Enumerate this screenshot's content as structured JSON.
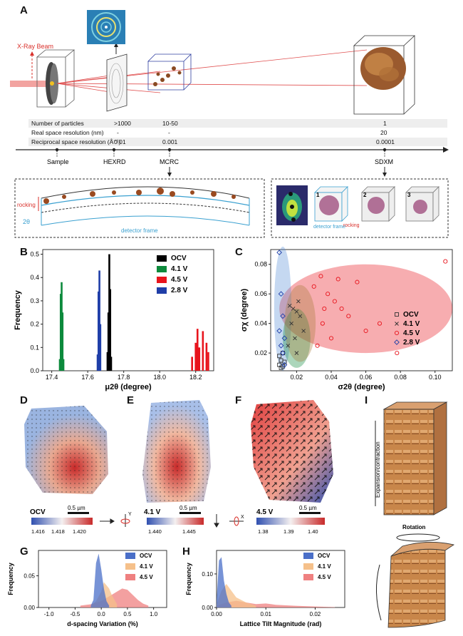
{
  "panels": {
    "A": "A",
    "B": "B",
    "C": "C",
    "D": "D",
    "E": "E",
    "F": "F",
    "G": "G",
    "H": "H",
    "I": "I"
  },
  "panelA": {
    "beam_label": "X-Ray Beam",
    "table": [
      {
        "label": "Number of particles",
        "hexrd": ">1000",
        "mcrc": "10-50",
        "sdxm": "1"
      },
      {
        "label": "Real space resolution (nm)",
        "hexrd": "-",
        "mcrc": "-",
        "sdxm": "20"
      },
      {
        "label": "Reciprocal space resolution (Å⁻¹)",
        "hexrd": "0.01",
        "mcrc": "0.001",
        "sdxm": "0.0001"
      }
    ],
    "timeline": [
      "Sample",
      "HEXRD",
      "MCRC",
      "SDXM"
    ],
    "mcrc_box": {
      "rocking": "rocking",
      "two_theta": "2θ",
      "detector": "detector frame"
    },
    "sdxm_box": {
      "detector": "detector frame",
      "rocking": "rocking",
      "markers": [
        "1",
        "2",
        "3"
      ]
    }
  },
  "chart_data": [
    {
      "id": "B",
      "type": "bar",
      "xlabel": "μ2θ (degree)",
      "ylabel": "Frequency",
      "xlim": [
        17.35,
        18.3
      ],
      "ylim": [
        0,
        0.52
      ],
      "xticks": [
        17.4,
        17.6,
        17.8,
        18.0,
        18.2
      ],
      "yticks": [
        0.0,
        0.1,
        0.2,
        0.3,
        0.4,
        0.5
      ],
      "series": [
        {
          "name": "OCV",
          "color": "#000000",
          "x": [
            17.71,
            17.715,
            17.72,
            17.725,
            17.73
          ],
          "values": [
            0.08,
            0.25,
            0.5,
            0.35,
            0.06
          ]
        },
        {
          "name": "4.1 V",
          "color": "#0d8a3c",
          "x": [
            17.445,
            17.45,
            17.455,
            17.46,
            17.465
          ],
          "values": [
            0.05,
            0.33,
            0.38,
            0.25,
            0.05
          ]
        },
        {
          "name": "4.5 V",
          "color": "#e8141c",
          "x": [
            18.18,
            18.2,
            18.21,
            18.22,
            18.24,
            18.26,
            18.27
          ],
          "values": [
            0.06,
            0.12,
            0.18,
            0.1,
            0.17,
            0.12,
            0.08
          ]
        },
        {
          "name": "2.8 V",
          "color": "#1f3ea8",
          "x": [
            17.655,
            17.66,
            17.665,
            17.67
          ],
          "values": [
            0.07,
            0.34,
            0.43,
            0.2
          ]
        }
      ]
    },
    {
      "id": "C",
      "type": "scatter",
      "xlabel": "σ2θ (degree)",
      "ylabel": "σχ (degree)",
      "xlim": [
        0.005,
        0.11
      ],
      "ylim": [
        0.008,
        0.09
      ],
      "xticks": [
        0.02,
        0.04,
        0.06,
        0.08,
        0.1
      ],
      "yticks": [
        0.02,
        0.04,
        0.06,
        0.08
      ],
      "series": [
        {
          "name": "OCV",
          "marker": "square",
          "color": "#333333",
          "x": [
            0.01,
            0.011,
            0.012,
            0.01,
            0.013,
            0.011,
            0.012
          ],
          "y": [
            0.012,
            0.015,
            0.011,
            0.018,
            0.014,
            0.01,
            0.02
          ]
        },
        {
          "name": "4.1 V",
          "marker": "x",
          "color": "#333333",
          "x": [
            0.016,
            0.018,
            0.02,
            0.022,
            0.021,
            0.017,
            0.024,
            0.019,
            0.015,
            0.02
          ],
          "y": [
            0.052,
            0.05,
            0.048,
            0.045,
            0.055,
            0.04,
            0.035,
            0.03,
            0.025,
            0.02
          ]
        },
        {
          "name": "4.5 V",
          "marker": "circle",
          "color": "#e8141c",
          "x": [
            0.03,
            0.034,
            0.038,
            0.042,
            0.046,
            0.05,
            0.035,
            0.04,
            0.06,
            0.068,
            0.078,
            0.106,
            0.032,
            0.036,
            0.044,
            0.055
          ],
          "y": [
            0.065,
            0.072,
            0.06,
            0.055,
            0.05,
            0.045,
            0.04,
            0.03,
            0.035,
            0.04,
            0.02,
            0.082,
            0.025,
            0.05,
            0.07,
            0.068
          ]
        },
        {
          "name": "2.8 V",
          "marker": "diamond",
          "color": "#1f3ea8",
          "x": [
            0.01,
            0.011,
            0.012,
            0.01,
            0.013,
            0.011,
            0.012,
            0.013
          ],
          "y": [
            0.088,
            0.06,
            0.045,
            0.035,
            0.03,
            0.025,
            0.02,
            0.012
          ]
        }
      ],
      "ellipses": [
        {
          "color": "#e8141c",
          "cx": 0.06,
          "cy": 0.05,
          "rx": 0.05,
          "ry": 0.03
        },
        {
          "color": "#5a8fd6",
          "cx": 0.012,
          "cy": 0.05,
          "rx": 0.005,
          "ry": 0.042
        },
        {
          "color": "#0d8a3c",
          "cx": 0.02,
          "cy": 0.03,
          "rx": 0.008,
          "ry": 0.02
        },
        {
          "color": "#a57a3a",
          "cx": 0.022,
          "cy": 0.04,
          "rx": 0.009,
          "ry": 0.026
        }
      ]
    },
    {
      "id": "G",
      "type": "area",
      "xlabel": "d-spacing Variation (%)",
      "ylabel": "Frequency",
      "xlim": [
        -1.2,
        1.25
      ],
      "ylim": [
        0,
        0.09
      ],
      "xticks": [
        -1.0,
        -0.5,
        0.0,
        0.5,
        1.0
      ],
      "yticks": [
        0.0,
        0.05
      ],
      "series": [
        {
          "name": "OCV",
          "color": "#4a6fc8",
          "x": [
            -0.2,
            -0.15,
            -0.1,
            -0.05,
            0.0,
            0.05,
            0.1,
            0.15
          ],
          "values": [
            0.003,
            0.012,
            0.07,
            0.085,
            0.06,
            0.03,
            0.01,
            0.003
          ]
        },
        {
          "name": "4.1 V",
          "color": "#f5c08a",
          "x": [
            -0.2,
            -0.1,
            0.0,
            0.05,
            0.1,
            0.15,
            0.2,
            0.3
          ],
          "values": [
            0.003,
            0.01,
            0.025,
            0.04,
            0.035,
            0.03,
            0.02,
            0.005
          ]
        },
        {
          "name": "4.5 V",
          "color": "#ef8080",
          "x": [
            -0.4,
            -0.2,
            0.0,
            0.2,
            0.3,
            0.4,
            0.5,
            0.6,
            0.7,
            0.8,
            0.9
          ],
          "values": [
            0.003,
            0.005,
            0.01,
            0.02,
            0.025,
            0.03,
            0.028,
            0.02,
            0.012,
            0.006,
            0.003
          ]
        }
      ]
    },
    {
      "id": "H",
      "type": "area",
      "xlabel": "Lattice Tilt Magnitude (rad)",
      "ylabel": "Frequency",
      "xlim": [
        0,
        0.026
      ],
      "ylim": [
        0,
        0.17
      ],
      "xticks": [
        0.0,
        0.01,
        0.02
      ],
      "yticks": [
        0.0,
        0.1
      ],
      "series": [
        {
          "name": "OCV",
          "color": "#4a6fc8",
          "x": [
            0.0,
            0.0005,
            0.001,
            0.0015,
            0.002,
            0.0025,
            0.003
          ],
          "values": [
            0.02,
            0.14,
            0.15,
            0.08,
            0.04,
            0.015,
            0.005
          ]
        },
        {
          "name": "4.1 V",
          "color": "#f5c08a",
          "x": [
            0.0,
            0.001,
            0.002,
            0.003,
            0.004,
            0.006,
            0.008
          ],
          "values": [
            0.01,
            0.05,
            0.07,
            0.05,
            0.03,
            0.015,
            0.005
          ]
        },
        {
          "name": "4.5 V",
          "color": "#ef8080",
          "x": [
            0.0,
            0.002,
            0.004,
            0.006,
            0.008,
            0.01,
            0.012,
            0.016,
            0.02,
            0.024
          ],
          "values": [
            0.005,
            0.015,
            0.02,
            0.015,
            0.01,
            0.012,
            0.008,
            0.005,
            0.003,
            0.001
          ]
        }
      ]
    }
  ],
  "maps": {
    "D": {
      "label": "OCV",
      "scale": "0.5 µm",
      "ticks": [
        "1.416",
        "1.418",
        "1.420"
      ]
    },
    "E": {
      "label": "4.1 V",
      "scale": "0.5 µm",
      "ticks": [
        "1.440",
        "1.445"
      ]
    },
    "F": {
      "label": "4.5 V",
      "scale": "0.5 µm",
      "ticks": [
        "1.38",
        "1.39",
        "1.40"
      ]
    },
    "axis_y": "Y",
    "axis_x": "X"
  },
  "panelI": {
    "expansion": "Expansion/contraction",
    "rotation": "Rotation"
  }
}
